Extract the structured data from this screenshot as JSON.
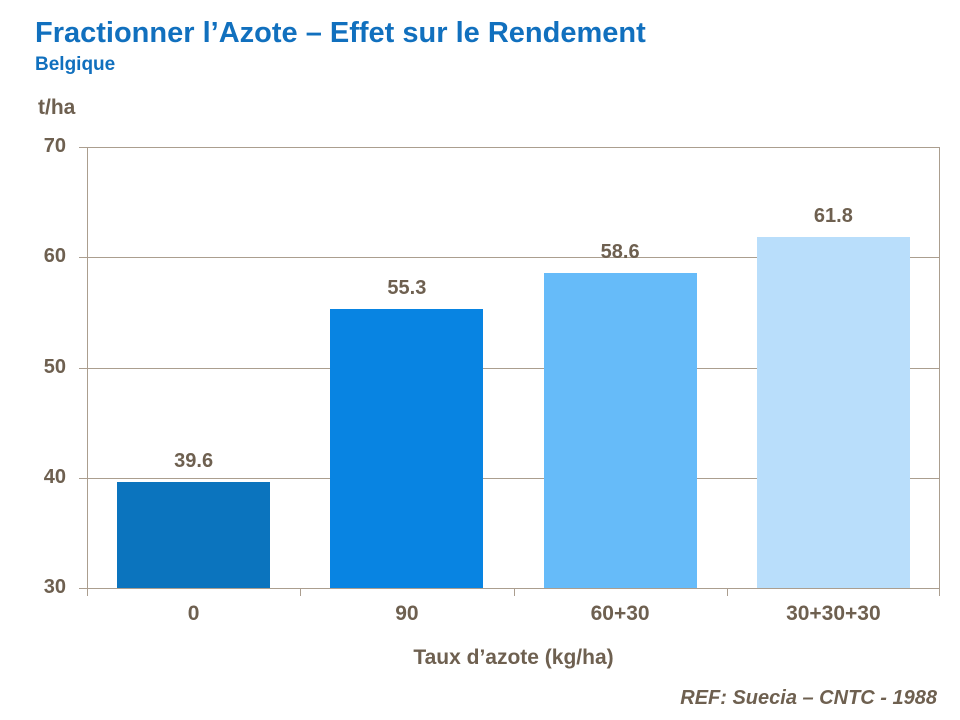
{
  "header": {
    "title": "Fractionner l’Azote – Effet sur le Rendement",
    "subtitle": "Belgique"
  },
  "footer": {
    "ref": "REF: Suecia – CNTC - 1988"
  },
  "chart_data": {
    "type": "bar",
    "title": "Fractionner l’Azote – Effet sur le Rendement",
    "subtitle": "Belgique",
    "categories": [
      "0",
      "90",
      "60+30",
      "30+30+30"
    ],
    "values": [
      39.6,
      55.3,
      58.6,
      61.8
    ],
    "value_labels": [
      "39.6",
      "55.3",
      "58.6",
      "61.8"
    ],
    "bar_colors": [
      "#0B74BE",
      "#0884E2",
      "#66BBF9",
      "#B9DEFB"
    ],
    "xlabel": "Taux d’azote (kg/ha)",
    "ylabel": "t/ha",
    "ylim": [
      30,
      70
    ],
    "yticks": [
      30,
      40,
      50,
      60,
      70
    ],
    "grid": "horizontal",
    "legend": "none",
    "colors": {
      "title_blue": "#1170BE",
      "text_brown": "#6E6050",
      "grid_brown": "#AB9E8F"
    }
  }
}
